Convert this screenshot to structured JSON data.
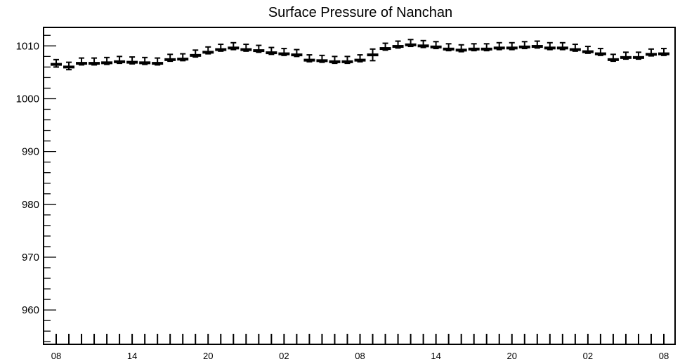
{
  "chart_data": {
    "type": "scatter",
    "title": "Surface Pressure of Nanchan",
    "xlabel": "",
    "ylabel": "",
    "grid": false,
    "legend": "none",
    "ylim": [
      953.5,
      1013.5
    ],
    "y_ticks": [
      960,
      970,
      980,
      990,
      1000,
      1010
    ],
    "y_tick_labels": [
      "960",
      "970",
      "980",
      "990",
      "1000",
      "1010"
    ],
    "x_tick_labels": [
      "08",
      "14",
      "20",
      "02",
      "08",
      "14",
      "20",
      "02",
      "08"
    ],
    "x": [
      "08",
      "09",
      "10",
      "11",
      "12",
      "13",
      "14",
      "15",
      "16",
      "17",
      "18",
      "19",
      "20",
      "21",
      "22",
      "23",
      "00",
      "01",
      "02",
      "03",
      "04",
      "05",
      "06",
      "07",
      "08",
      "09",
      "10",
      "11",
      "12",
      "13",
      "14",
      "15",
      "16",
      "17",
      "18",
      "19",
      "20",
      "21",
      "22",
      "23",
      "00",
      "01",
      "02",
      "03",
      "04",
      "05",
      "06",
      "07",
      "08"
    ],
    "series": [
      {
        "values": [
          1006.5,
          1006.0,
          1006.7,
          1006.7,
          1006.8,
          1007.0,
          1006.9,
          1006.8,
          1006.7,
          1007.4,
          1007.5,
          1008.2,
          1008.8,
          1009.3,
          1009.6,
          1009.3,
          1009.1,
          1008.7,
          1008.5,
          1008.3,
          1007.3,
          1007.2,
          1007.0,
          1007.0,
          1007.3,
          1008.3,
          1009.5,
          1009.9,
          1010.2,
          1010.0,
          1009.8,
          1009.4,
          1009.2,
          1009.4,
          1009.4,
          1009.6,
          1009.6,
          1009.8,
          1009.9,
          1009.6,
          1009.6,
          1009.3,
          1008.9,
          1008.5,
          1007.4,
          1007.8,
          1007.8,
          1008.4,
          1008.5
        ],
        "err_up": [
          0.9,
          0.9,
          1.0,
          1.0,
          1.0,
          1.0,
          1.0,
          1.0,
          1.0,
          1.0,
          1.0,
          1.0,
          1.0,
          1.0,
          1.0,
          1.0,
          1.0,
          1.0,
          1.0,
          1.0,
          1.0,
          1.0,
          1.0,
          1.0,
          1.0,
          1.1,
          1.0,
          1.0,
          1.0,
          1.0,
          1.0,
          1.0,
          1.0,
          1.0,
          1.0,
          1.0,
          1.0,
          1.0,
          1.0,
          1.0,
          1.0,
          1.0,
          1.0,
          1.0,
          1.0,
          1.0,
          1.0,
          1.0,
          1.0
        ],
        "err_down": [
          0.5,
          0.5,
          0.3,
          0.3,
          0.3,
          0.3,
          0.3,
          0.3,
          0.3,
          0.3,
          0.3,
          0.3,
          0.3,
          0.3,
          0.3,
          0.3,
          0.3,
          0.3,
          0.3,
          0.3,
          0.3,
          0.3,
          0.3,
          0.3,
          0.3,
          1.1,
          0.3,
          0.3,
          0.3,
          0.3,
          0.3,
          0.3,
          0.3,
          0.3,
          0.3,
          0.3,
          0.3,
          0.3,
          0.3,
          0.3,
          0.3,
          0.3,
          0.3,
          0.3,
          0.3,
          0.3,
          0.3,
          0.3,
          0.3
        ]
      }
    ]
  }
}
